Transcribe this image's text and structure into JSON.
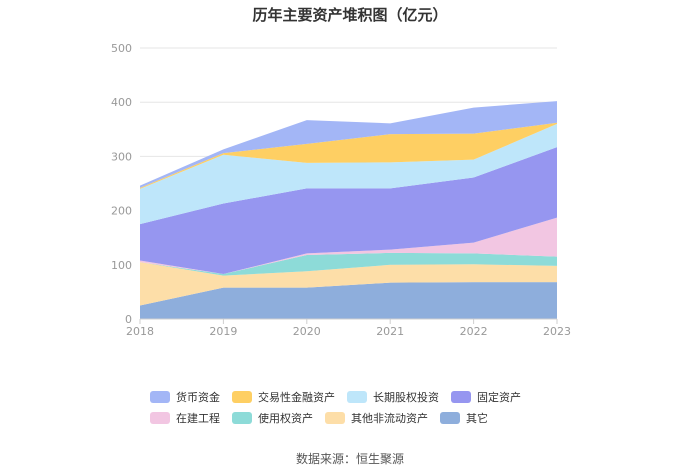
{
  "chart_data": {
    "type": "area",
    "title": "历年主要资产堆积图（亿元）",
    "categories": [
      "2018",
      "2019",
      "2020",
      "2021",
      "2022",
      "2023"
    ],
    "y_ticks": [
      "0",
      "100",
      "200",
      "300",
      "400",
      "500"
    ],
    "ylim": [
      0,
      500
    ],
    "grid": true,
    "legend_position": "bottom",
    "stacked": true,
    "series": [
      {
        "name": "其它",
        "color": "#8eaedc",
        "values": [
          25,
          58,
          58,
          67,
          68,
          68
        ]
      },
      {
        "name": "其他非流动资产",
        "color": "#fddea8",
        "values": [
          80,
          22,
          30,
          33,
          33,
          30
        ]
      },
      {
        "name": "使用权资产",
        "color": "#8ddbd8",
        "values": [
          0,
          3,
          30,
          22,
          20,
          17
        ]
      },
      {
        "name": "在建工程",
        "color": "#f2c6e2",
        "values": [
          3,
          0,
          3,
          6,
          20,
          72
        ]
      },
      {
        "name": "固定资产",
        "color": "#9696f0",
        "values": [
          67,
          130,
          120,
          113,
          120,
          130
        ]
      },
      {
        "name": "长期股权投资",
        "color": "#bee6fa",
        "values": [
          65,
          90,
          47,
          48,
          33,
          43
        ]
      },
      {
        "name": "交易性金融资产",
        "color": "#fecf63",
        "values": [
          2,
          3,
          35,
          52,
          48,
          2
        ]
      },
      {
        "name": "货币资金",
        "color": "#a3b6f6",
        "values": [
          4,
          7,
          44,
          20,
          48,
          40
        ]
      }
    ],
    "legend_order": [
      "货币资金",
      "交易性金融资产",
      "长期股权投资",
      "固定资产",
      "在建工程",
      "使用权资产",
      "其他非流动资产",
      "其它"
    ]
  },
  "source": "数据来源：恒生聚源"
}
